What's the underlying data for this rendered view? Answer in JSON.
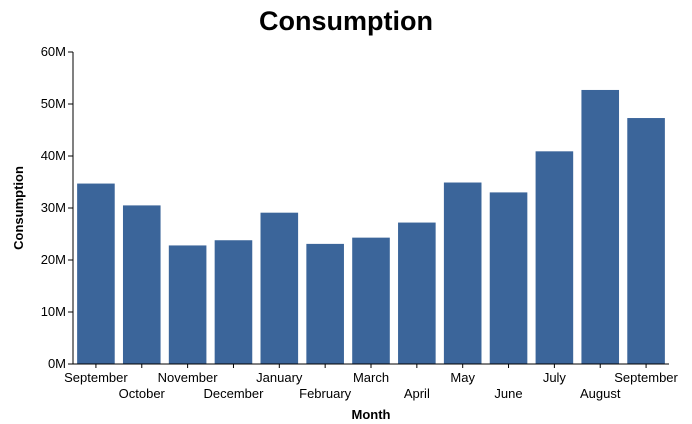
{
  "chart_data": {
    "type": "bar",
    "title": "Consumption",
    "xlabel": "Month",
    "ylabel": "Consumption",
    "categories": [
      "September",
      "October",
      "November",
      "December",
      "January",
      "February",
      "March",
      "April",
      "May",
      "June",
      "July",
      "August",
      "September"
    ],
    "values": [
      34700000,
      30500000,
      22800000,
      23800000,
      29100000,
      23100000,
      24300000,
      27200000,
      34900000,
      33000000,
      40900000,
      52700000,
      47300000
    ],
    "ylim": [
      0,
      60000000
    ],
    "yticks": [
      0,
      10000000,
      20000000,
      30000000,
      40000000,
      50000000,
      60000000
    ],
    "ytick_labels": [
      "0M",
      "10M",
      "20M",
      "30M",
      "40M",
      "50M",
      "60M"
    ],
    "bar_color": "#3b659a",
    "grid": false,
    "legend": "none"
  }
}
